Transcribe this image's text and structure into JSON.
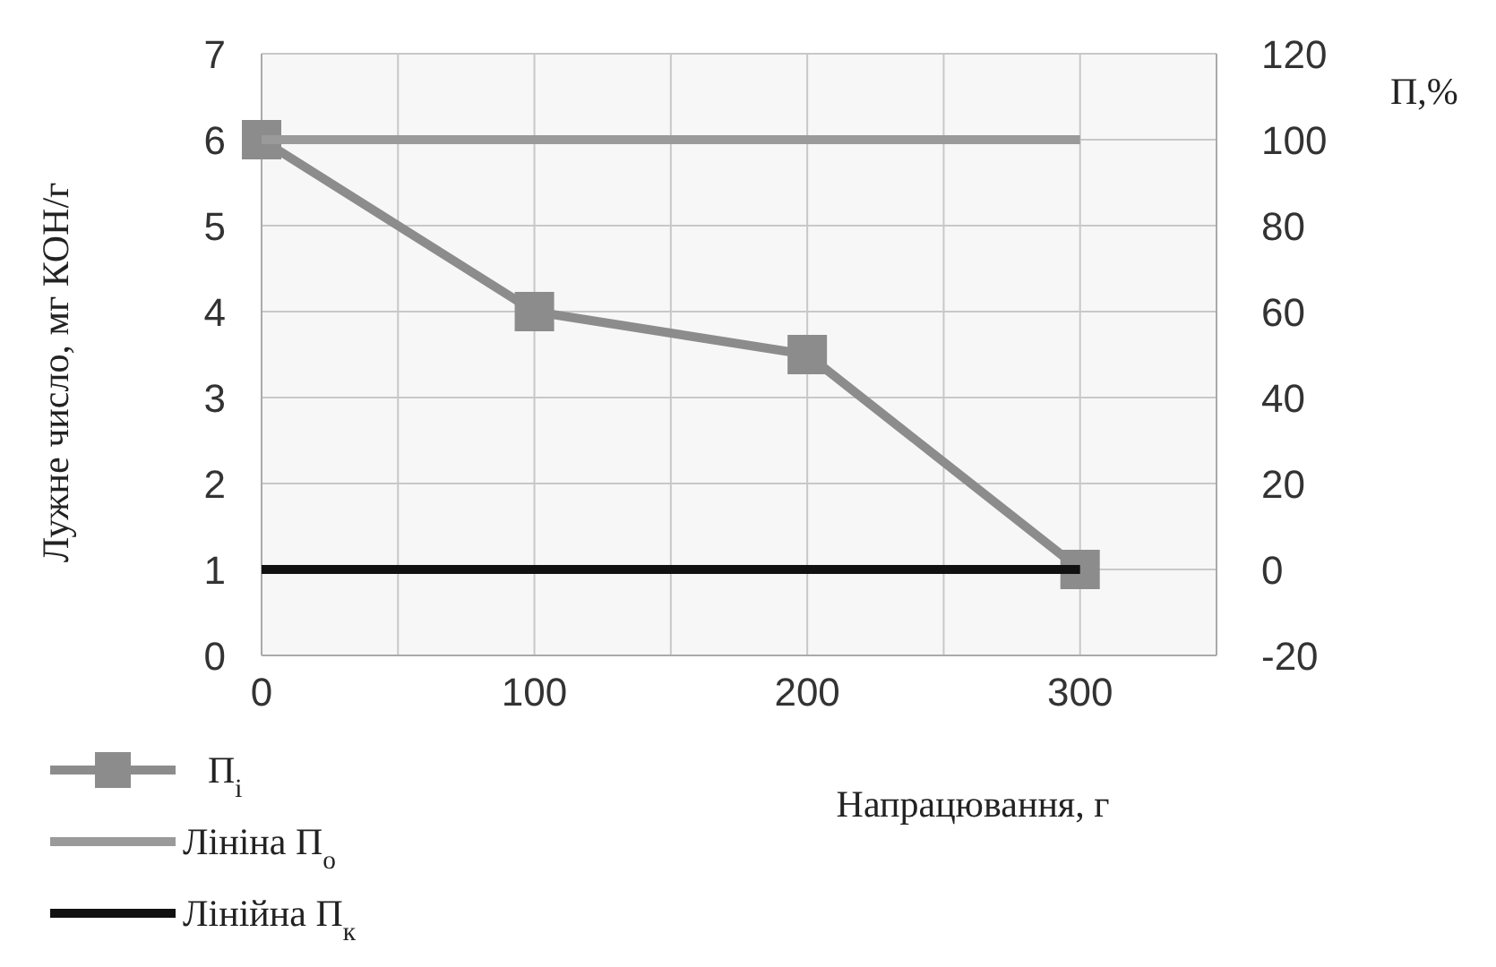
{
  "chart_data": {
    "type": "line",
    "xlabel": "Напрацювання, г",
    "ylabel": "Лужне число, мг КОН/г",
    "y2label": "П,%",
    "x": [
      0,
      100,
      200,
      300
    ],
    "xlim": [
      0,
      350
    ],
    "xticks": [
      0,
      {
        "value": 50,
        "label": null
      },
      100,
      {
        "value": 150,
        "label": null
      },
      200,
      {
        "value": 250,
        "label": null
      },
      300,
      {
        "value": 350,
        "label": null
      }
    ],
    "ylim": [
      0,
      7
    ],
    "yticks": [
      0,
      1,
      2,
      3,
      4,
      5,
      6,
      7
    ],
    "y2lim": [
      -20,
      120
    ],
    "y2ticks": [
      -20,
      0,
      20,
      40,
      60,
      80,
      100,
      120
    ],
    "grid": true,
    "legend": "bottom left",
    "series": [
      {
        "name": "П$_{і}$",
        "color": "#8c8c8c",
        "values": [
          6,
          4,
          3.5,
          1
        ],
        "marker": "square"
      },
      {
        "name": "Лініна П$_{о}$",
        "color": "#9a9a9a",
        "values": [
          100,
          100,
          100,
          100
        ],
        "axis": "y2",
        "marker": "none"
      },
      {
        "name": "Лінійна П$_{к}$",
        "color": "#111111",
        "values": [
          0,
          0,
          0,
          0
        ],
        "axis": "y2",
        "marker": "none"
      }
    ]
  }
}
